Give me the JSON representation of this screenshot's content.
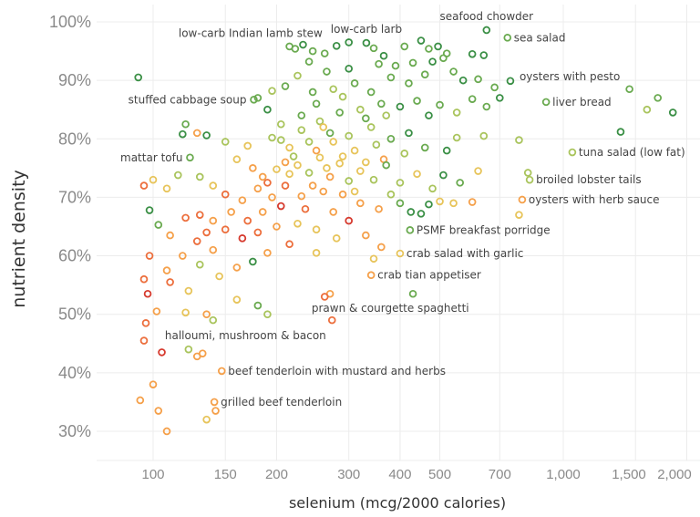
{
  "chart_data": {
    "type": "scatter",
    "xlabel": "selenium (mcg/2000 calories)",
    "ylabel": "nutrient density",
    "xscale": "log",
    "xlim": [
      72,
      2200
    ],
    "ylim": [
      26,
      103
    ],
    "grid": true,
    "x_ticks": [
      {
        "v": 100,
        "t": "100"
      },
      {
        "v": 150,
        "t": "150"
      },
      {
        "v": 200,
        "t": "200"
      },
      {
        "v": 300,
        "t": "300"
      },
      {
        "v": 400,
        "t": "400"
      },
      {
        "v": 500,
        "t": "500"
      },
      {
        "v": 700,
        "t": "700"
      },
      {
        "v": 1000,
        "t": "1,000"
      },
      {
        "v": 1500,
        "t": "1,500"
      },
      {
        "v": 2000,
        "t": "2,000"
      }
    ],
    "y_ticks": [
      {
        "v": 30,
        "t": "30%"
      },
      {
        "v": 40,
        "t": "40%"
      },
      {
        "v": 50,
        "t": "50%"
      },
      {
        "v": 60,
        "t": "60%"
      },
      {
        "v": 70,
        "t": "70%"
      },
      {
        "v": 80,
        "t": "80%"
      },
      {
        "v": 90,
        "t": "90%"
      },
      {
        "v": 100,
        "t": "100%"
      }
    ],
    "color_scale": [
      "#3a8f45",
      "#6aaa50",
      "#a9c45c",
      "#e7c45a",
      "#f5a04a",
      "#ec6e3c",
      "#d63a2e"
    ],
    "labeled_points": [
      {
        "name": "seafood chowder",
        "x": 650,
        "y": 98.6,
        "c": 0,
        "side": "above"
      },
      {
        "name": "sea salad",
        "x": 731,
        "y": 97.3,
        "c": 1,
        "side": "right"
      },
      {
        "name": "oysters with pesto",
        "x": 743,
        "y": 89.9,
        "c": 0,
        "side": "right-up"
      },
      {
        "name": "liver bread",
        "x": 908,
        "y": 86.3,
        "c": 1,
        "side": "right"
      },
      {
        "name": "tuna salad (low fat)",
        "x": 1052,
        "y": 77.7,
        "c": 2,
        "side": "right"
      },
      {
        "name": "broiled lobster tails",
        "x": 828,
        "y": 73.0,
        "c": 2,
        "side": "right"
      },
      {
        "name": "oysters with herb sauce",
        "x": 794,
        "y": 69.6,
        "c": 4,
        "side": "right"
      },
      {
        "name": "PSMF breakfast porridge",
        "x": 423,
        "y": 64.4,
        "c": 1,
        "side": "right"
      },
      {
        "name": "crab salad with garlic",
        "x": 400,
        "y": 60.4,
        "c": 3,
        "side": "right"
      },
      {
        "name": "crab tian appetiser",
        "x": 340,
        "y": 56.7,
        "c": 4,
        "side": "right"
      },
      {
        "name": "prawn & courgette spaghetti",
        "x": 273,
        "y": 49.0,
        "c": 5,
        "side": "above-mid"
      },
      {
        "name": "halloumi, mushroom & bacon",
        "x": 122,
        "y": 44.0,
        "c": 2,
        "side": "above-start"
      },
      {
        "name": "beef tenderloin with mustard and herbs",
        "x": 147,
        "y": 40.3,
        "c": 4,
        "side": "right"
      },
      {
        "name": "grilled beef tenderloin",
        "x": 141,
        "y": 35.0,
        "c": 4,
        "side": "right"
      },
      {
        "name": "mattar tofu",
        "x": 123,
        "y": 76.8,
        "c": 1,
        "side": "left"
      },
      {
        "name": "stuffed cabbage soup",
        "x": 176,
        "y": 86.7,
        "c": 1,
        "side": "left"
      },
      {
        "name": "low-carb larb",
        "x": 331,
        "y": 96.4,
        "c": 0,
        "side": "above"
      },
      {
        "name": "low-carb Indian lamb stew",
        "x": 222,
        "y": 95.4,
        "c": 1,
        "side": "above-left"
      }
    ],
    "points": [
      [
        92,
        90.5,
        0
      ],
      [
        215,
        95.8,
        1
      ],
      [
        232,
        96.1,
        0
      ],
      [
        245,
        95.0,
        1
      ],
      [
        262,
        94.6,
        1
      ],
      [
        280,
        95.9,
        0
      ],
      [
        300,
        96.5,
        0
      ],
      [
        345,
        95.5,
        1
      ],
      [
        365,
        94.2,
        0
      ],
      [
        410,
        95.8,
        1
      ],
      [
        450,
        96.8,
        0
      ],
      [
        470,
        95.4,
        1
      ],
      [
        495,
        95.8,
        0
      ],
      [
        520,
        94.6,
        1
      ],
      [
        600,
        94.5,
        0
      ],
      [
        640,
        94.3,
        0
      ],
      [
        510,
        93.8,
        1
      ],
      [
        480,
        93.2,
        0
      ],
      [
        430,
        93.0,
        1
      ],
      [
        390,
        92.5,
        1
      ],
      [
        355,
        92.8,
        1
      ],
      [
        300,
        92.0,
        0
      ],
      [
        265,
        91.5,
        1
      ],
      [
        240,
        93.2,
        1
      ],
      [
        225,
        90.8,
        2
      ],
      [
        210,
        89.0,
        1
      ],
      [
        195,
        88.2,
        2
      ],
      [
        180,
        87.0,
        1
      ],
      [
        190,
        85.0,
        0
      ],
      [
        245,
        88.0,
        1
      ],
      [
        275,
        88.5,
        2
      ],
      [
        310,
        89.5,
        1
      ],
      [
        340,
        88.0,
        1
      ],
      [
        380,
        90.5,
        1
      ],
      [
        420,
        89.5,
        1
      ],
      [
        460,
        91.0,
        1
      ],
      [
        540,
        91.5,
        1
      ],
      [
        570,
        90.0,
        0
      ],
      [
        620,
        90.2,
        1
      ],
      [
        680,
        88.8,
        1
      ],
      [
        700,
        87.0,
        0
      ],
      [
        650,
        85.5,
        1
      ],
      [
        600,
        86.8,
        1
      ],
      [
        550,
        84.5,
        2
      ],
      [
        500,
        85.8,
        1
      ],
      [
        470,
        84.0,
        0
      ],
      [
        440,
        86.5,
        1
      ],
      [
        400,
        85.5,
        0
      ],
      [
        360,
        86.0,
        1
      ],
      [
        320,
        85.0,
        2
      ],
      [
        285,
        84.5,
        1
      ],
      [
        255,
        83.0,
        2
      ],
      [
        230,
        84.0,
        1
      ],
      [
        205,
        82.5,
        2
      ],
      [
        1450,
        88.5,
        1
      ],
      [
        1600,
        85.0,
        2
      ],
      [
        1700,
        87.0,
        1
      ],
      [
        1850,
        84.5,
        0
      ],
      [
        1380,
        81.2,
        0
      ],
      [
        780,
        79.8,
        2
      ],
      [
        640,
        80.5,
        2
      ],
      [
        550,
        80.2,
        2
      ],
      [
        520,
        78.0,
        0
      ],
      [
        460,
        78.5,
        1
      ],
      [
        420,
        81.0,
        0
      ],
      [
        380,
        80.0,
        1
      ],
      [
        340,
        82.0,
        2
      ],
      [
        300,
        80.5,
        2
      ],
      [
        270,
        81.0,
        1
      ],
      [
        240,
        79.5,
        2
      ],
      [
        215,
        78.5,
        3
      ],
      [
        195,
        80.2,
        2
      ],
      [
        170,
        78.8,
        3
      ],
      [
        150,
        79.5,
        2
      ],
      [
        135,
        80.6,
        0
      ],
      [
        120,
        82.5,
        1
      ],
      [
        128,
        81.0,
        4
      ],
      [
        118,
        80.8,
        0
      ],
      [
        250,
        86.0,
        1
      ],
      [
        290,
        87.2,
        2
      ],
      [
        330,
        83.5,
        1
      ],
      [
        370,
        84.0,
        2
      ],
      [
        260,
        82.0,
        3
      ],
      [
        310,
        78.0,
        3
      ],
      [
        230,
        81.5,
        2
      ],
      [
        350,
        79.0,
        2
      ],
      [
        290,
        77.0,
        3
      ],
      [
        410,
        77.5,
        2
      ],
      [
        365,
        76.5,
        4
      ],
      [
        250,
        78.0,
        4
      ],
      [
        220,
        77.0,
        2
      ],
      [
        205,
        79.8,
        2
      ],
      [
        275,
        79.5,
        3
      ],
      [
        330,
        76.0,
        3
      ],
      [
        160,
        76.5,
        3
      ],
      [
        175,
        75.0,
        4
      ],
      [
        185,
        73.5,
        4
      ],
      [
        200,
        74.8,
        3
      ],
      [
        210,
        76.0,
        4
      ],
      [
        225,
        75.5,
        3
      ],
      [
        240,
        74.2,
        2
      ],
      [
        255,
        76.8,
        3
      ],
      [
        270,
        73.5,
        4
      ],
      [
        285,
        75.8,
        3
      ],
      [
        300,
        72.8,
        2
      ],
      [
        320,
        74.5,
        3
      ],
      [
        345,
        73.0,
        2
      ],
      [
        370,
        75.5,
        1
      ],
      [
        400,
        72.5,
        2
      ],
      [
        440,
        74.0,
        3
      ],
      [
        480,
        71.5,
        2
      ],
      [
        510,
        73.8,
        0
      ],
      [
        560,
        72.5,
        1
      ],
      [
        620,
        74.5,
        3
      ],
      [
        820,
        74.2,
        2
      ],
      [
        450,
        67.2,
        0
      ],
      [
        425,
        67.5,
        0
      ],
      [
        470,
        68.8,
        0
      ],
      [
        500,
        69.3,
        3
      ],
      [
        540,
        69.0,
        3
      ],
      [
        600,
        69.2,
        4
      ],
      [
        780,
        67.0,
        3
      ],
      [
        320,
        69.0,
        4
      ],
      [
        290,
        70.5,
        4
      ],
      [
        260,
        71.0,
        4
      ],
      [
        230,
        70.2,
        4
      ],
      [
        210,
        72.0,
        5
      ],
      [
        195,
        70.0,
        4
      ],
      [
        180,
        71.5,
        4
      ],
      [
        165,
        69.5,
        4
      ],
      [
        150,
        70.5,
        5
      ],
      [
        140,
        72.0,
        3
      ],
      [
        130,
        73.5,
        2
      ],
      [
        115,
        73.8,
        2
      ],
      [
        108,
        71.5,
        3
      ],
      [
        100,
        73.0,
        3
      ],
      [
        95,
        72.0,
        5
      ],
      [
        98,
        67.8,
        0
      ],
      [
        103,
        65.3,
        1
      ],
      [
        110,
        63.5,
        4
      ],
      [
        120,
        66.5,
        5
      ],
      [
        130,
        67.0,
        5
      ],
      [
        140,
        66.0,
        4
      ],
      [
        155,
        67.5,
        4
      ],
      [
        170,
        66.0,
        5
      ],
      [
        185,
        67.5,
        4
      ],
      [
        200,
        65.0,
        4
      ],
      [
        225,
        65.5,
        3
      ],
      [
        250,
        64.5,
        3
      ],
      [
        280,
        63.0,
        3
      ],
      [
        300,
        66.0,
        6
      ],
      [
        330,
        63.5,
        4
      ],
      [
        360,
        61.5,
        4
      ],
      [
        345,
        59.5,
        3
      ],
      [
        250,
        60.5,
        3
      ],
      [
        215,
        62.0,
        5
      ],
      [
        190,
        60.5,
        4
      ],
      [
        175,
        59.0,
        0
      ],
      [
        160,
        58.0,
        4
      ],
      [
        140,
        61.0,
        4
      ],
      [
        128,
        62.5,
        5
      ],
      [
        118,
        60.0,
        4
      ],
      [
        108,
        57.5,
        4
      ],
      [
        98,
        60.0,
        5
      ],
      [
        95,
        56.0,
        5
      ],
      [
        97,
        53.5,
        6
      ],
      [
        102,
        50.5,
        4
      ],
      [
        96,
        48.5,
        5
      ],
      [
        110,
        55.5,
        5
      ],
      [
        122,
        54.0,
        3
      ],
      [
        130,
        58.5,
        2
      ],
      [
        145,
        56.5,
        3
      ],
      [
        160,
        52.5,
        3
      ],
      [
        180,
        51.5,
        1
      ],
      [
        190,
        50.0,
        2
      ],
      [
        270,
        53.5,
        4
      ],
      [
        262,
        53.0,
        5
      ],
      [
        430,
        53.5,
        1
      ],
      [
        120,
        50.3,
        3
      ],
      [
        135,
        50.0,
        4
      ],
      [
        140,
        49.0,
        2
      ],
      [
        95,
        45.5,
        5
      ],
      [
        105,
        43.5,
        6
      ],
      [
        128,
        42.8,
        4
      ],
      [
        132,
        43.3,
        4
      ],
      [
        100,
        38.0,
        4
      ],
      [
        93,
        35.3,
        4
      ],
      [
        103,
        33.5,
        4
      ],
      [
        108,
        30.0,
        4
      ],
      [
        135,
        32.0,
        3
      ],
      [
        142,
        33.5,
        4
      ],
      [
        190,
        72.5,
        5
      ],
      [
        245,
        72.0,
        4
      ],
      [
        275,
        67.5,
        4
      ],
      [
        235,
        68.0,
        5
      ],
      [
        205,
        68.5,
        6
      ],
      [
        180,
        64.0,
        5
      ],
      [
        165,
        63.0,
        6
      ],
      [
        150,
        64.5,
        5
      ],
      [
        135,
        64.0,
        5
      ],
      [
        215,
        74.0,
        3
      ],
      [
        265,
        75.0,
        3
      ],
      [
        310,
        71.0,
        3
      ],
      [
        380,
        70.5,
        2
      ],
      [
        400,
        69.0,
        1
      ],
      [
        355,
        68.0,
        4
      ]
    ]
  }
}
